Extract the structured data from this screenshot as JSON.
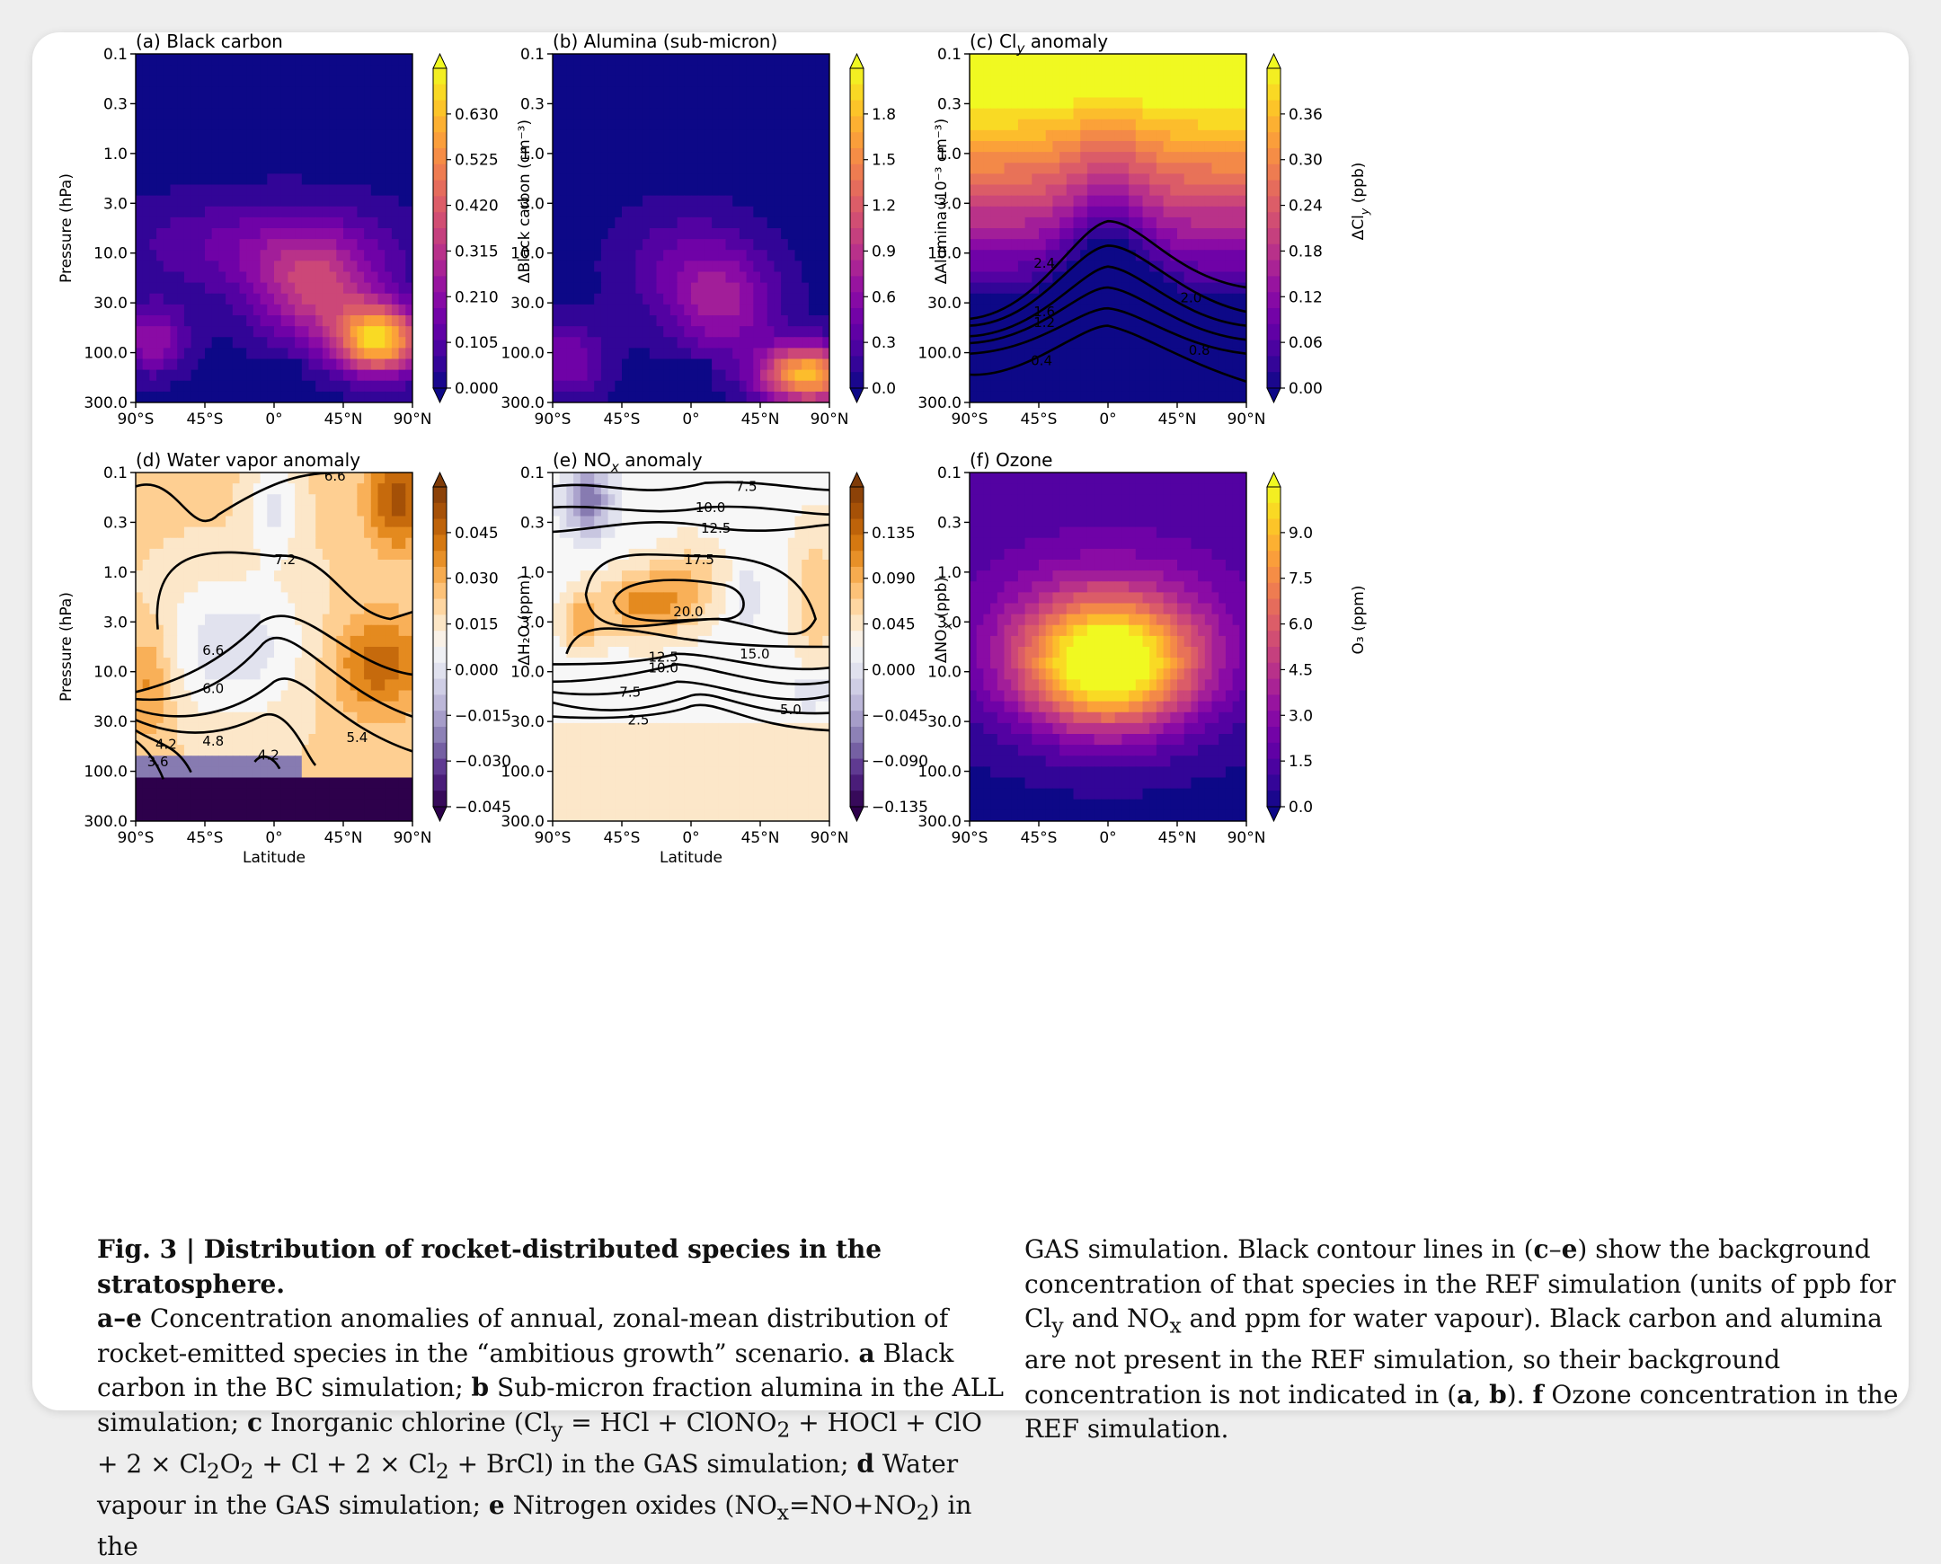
{
  "chart_data": [
    {
      "panel": "a",
      "title": "(a) Black carbon",
      "type": "heatmap",
      "xlabel": "",
      "ylabel": "Pressure (hPa)",
      "xticks": [
        "90°S",
        "45°S",
        "0°",
        "45°N",
        "90°N"
      ],
      "yticks": [
        "0.1",
        "0.3",
        "1.0",
        "3.0",
        "10.0",
        "30.0",
        "100.0",
        "300.0"
      ],
      "colorbar_label": "ΔBlack carbon (cm⁻³)",
      "colorbar_ticks": [
        "0.000",
        "0.105",
        "0.210",
        "0.315",
        "0.420",
        "0.525",
        "0.630"
      ],
      "colormap": "plasma",
      "range": [
        0,
        0.7
      ]
    },
    {
      "panel": "b",
      "title": "(b) Alumina (sub-micron)",
      "type": "heatmap",
      "xlabel": "",
      "ylabel": "",
      "xticks": [
        "90°S",
        "45°S",
        "0°",
        "45°N",
        "90°N"
      ],
      "yticks": [
        "0.1",
        "0.3",
        "1.0",
        "3.0",
        "10.0",
        "30.0",
        "100.0",
        "300.0"
      ],
      "colorbar_label": "ΔAlumina (10⁻³ cm⁻³)",
      "colorbar_ticks": [
        "0.0",
        "0.3",
        "0.6",
        "0.9",
        "1.2",
        "1.5",
        "1.8"
      ],
      "colormap": "plasma",
      "range": [
        0,
        2.0
      ]
    },
    {
      "panel": "c",
      "title": "(c) Cl",
      "title_sub": "y",
      "title_rest": " anomaly",
      "type": "heatmap",
      "xlabel": "",
      "ylabel": "",
      "xticks": [
        "90°S",
        "45°S",
        "0°",
        "45°N",
        "90°N"
      ],
      "yticks": [
        "0.1",
        "0.3",
        "1.0",
        "3.0",
        "10.0",
        "30.0",
        "100.0",
        "300.0"
      ],
      "colorbar_label": "ΔCl",
      "colorbar_label_sub": "y",
      "colorbar_label_rest": " (ppb)",
      "colorbar_ticks": [
        "0.00",
        "0.06",
        "0.12",
        "0.18",
        "0.24",
        "0.30",
        "0.36"
      ],
      "colormap": "plasma",
      "range": [
        0,
        0.4
      ],
      "contour_labels": [
        "2.4",
        "2.0",
        "1.6",
        "1.2",
        "0.8",
        "0.4"
      ]
    },
    {
      "panel": "d",
      "title": "(d) Water vapor anomaly",
      "type": "heatmap",
      "xlabel": "Latitude",
      "ylabel": "Pressure (hPa)",
      "xticks": [
        "90°S",
        "45°S",
        "0°",
        "45°N",
        "90°N"
      ],
      "yticks": [
        "0.1",
        "0.3",
        "1.0",
        "3.0",
        "10.0",
        "30.0",
        "100.0",
        "300.0"
      ],
      "colorbar_label": "ΔH₂O (ppm)",
      "colorbar_ticks": [
        "−0.045",
        "−0.030",
        "−0.015",
        "0.000",
        "0.015",
        "0.030",
        "0.045"
      ],
      "colormap": "PuOr_r",
      "range": [
        -0.05,
        0.05
      ],
      "contour_labels": [
        "6.6",
        "7.2",
        "6.6",
        "6.0",
        "5.4",
        "4.8",
        "4.2",
        "4.2",
        "3.6"
      ]
    },
    {
      "panel": "e",
      "title": "(e) NO",
      "title_sub": "x",
      "title_rest": " anomaly",
      "type": "heatmap",
      "xlabel": "Latitude",
      "ylabel": "",
      "xticks": [
        "90°S",
        "45°S",
        "0°",
        "45°N",
        "90°N"
      ],
      "yticks": [
        "0.1",
        "0.3",
        "1.0",
        "3.0",
        "10.0",
        "30.0",
        "100.0",
        "300.0"
      ],
      "colorbar_label": "ΔNO",
      "colorbar_label_sub": "x",
      "colorbar_label_rest": " (ppb)",
      "colorbar_ticks": [
        "−0.135",
        "−0.090",
        "−0.045",
        "0.000",
        "0.045",
        "0.090",
        "0.135"
      ],
      "colormap": "PuOr_r",
      "range": [
        -0.15,
        0.15
      ],
      "contour_labels": [
        "7.5",
        "10.0",
        "12.5",
        "17.5",
        "20.0",
        "15.0",
        "12.5",
        "10.0",
        "7.5",
        "5.0",
        "2.5"
      ]
    },
    {
      "panel": "f",
      "title": "(f) Ozone",
      "type": "heatmap",
      "xlabel": "",
      "ylabel": "",
      "xticks": [
        "90°S",
        "45°S",
        "0°",
        "45°N",
        "90°N"
      ],
      "yticks": [
        "0.1",
        "0.3",
        "1.0",
        "3.0",
        "10.0",
        "30.0",
        "100.0",
        "300.0"
      ],
      "colorbar_label": "O₃ (ppm)",
      "colorbar_ticks": [
        "0.0",
        "1.5",
        "3.0",
        "4.5",
        "6.0",
        "7.5",
        "9.0"
      ],
      "colormap": "plasma",
      "range": [
        0,
        10.5
      ]
    }
  ],
  "caption": {
    "label": "Fig. 3 | Distribution of rocket-distributed species in the stratosphere.",
    "left": [
      {
        "b": "a–e",
        "t": " Concentration anomalies of annual, zonal-mean distribution of rocket-emitted species in the “ambitious growth” scenario. "
      },
      {
        "b": "a",
        "t": " Black carbon in the BC simulation; "
      },
      {
        "b": "b",
        "t": " Sub-micron fraction alumina in the ALL simulation; "
      },
      {
        "b": "c",
        "t": " Inorganic chlorine (Cl"
      }
    ],
    "left_html": "<b>a–e</b> Concentration anomalies of annual, zonal-mean distribution of rocket-emitted species in the “ambitious growth” scenario. <b>a</b> Black carbon in the BC simulation; <b>b</b> Sub-micron fraction alumina in the ALL simulation; <b>c</b> Inorganic chlorine (Cl<sub>y</sub> = HCl + ClONO<sub>2</sub> + HOCl + ClO + 2 × Cl<sub>2</sub>O<sub>2</sub> + Cl + 2 × Cl<sub>2</sub> + BrCl) in the GAS simulation; <b>d</b> Water vapour in the GAS simulation; <b>e</b> Nitrogen oxides (NO<sub>x</sub>=NO+NO<sub>2</sub>) in the",
    "right_html": "GAS simulation. Black contour lines in (<b>c</b>–<b>e</b>) show the background concentration of that species in the REF simulation (units of ppb for Cl<sub>y</sub> and NO<sub>x</sub> and ppm for water vapour). Black carbon and alumina are not present in the REF simulation, so their background concentration is not indicated in (<b>a</b>, <b>b</b>). <b>f</b> Ozone concentration in the REF simulation."
  }
}
